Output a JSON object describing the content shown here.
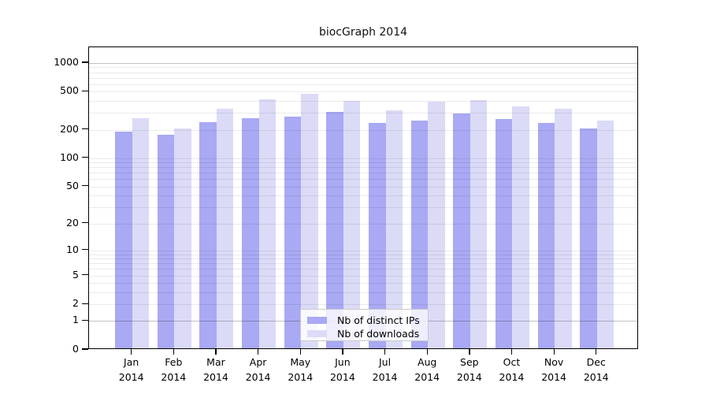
{
  "title": "biocGraph 2014",
  "chart_data": {
    "type": "bar",
    "title": "biocGraph 2014",
    "categories": [
      "Jan",
      "Feb",
      "Mar",
      "Apr",
      "May",
      "Jun",
      "Jul",
      "Aug",
      "Sep",
      "Oct",
      "Nov",
      "Dec"
    ],
    "category_year": "2014",
    "series": [
      {
        "name": "Nb of distinct IPs",
        "color": "#a9a9f4",
        "values": [
          185,
          171,
          233,
          255,
          262,
          295,
          228,
          241,
          286,
          250,
          228,
          197
        ]
      },
      {
        "name": "Nb of downloads",
        "color": "#dbdbf8",
        "values": [
          256,
          199,
          319,
          404,
          456,
          389,
          309,
          380,
          397,
          337,
          318,
          241
        ]
      }
    ],
    "y_axis": {
      "scale": "log1p",
      "tick_labels": [
        "1000",
        "500",
        "200",
        "100",
        "50",
        "20",
        "10",
        "5",
        "2",
        "1",
        "0"
      ],
      "tick_values": [
        1000,
        500,
        200,
        100,
        50,
        20,
        10,
        5,
        2,
        1,
        0
      ],
      "ylim": [
        0,
        1430
      ]
    },
    "gridline_values": [
      1,
      2,
      3,
      4,
      5,
      6,
      7,
      8,
      9,
      10,
      20,
      30,
      40,
      50,
      60,
      70,
      80,
      90,
      100,
      200,
      300,
      400,
      500,
      600,
      700,
      800,
      900,
      1000
    ],
    "gridline_major_values": [
      1,
      1000
    ],
    "colors": {
      "gridline_minor": "rgba(0,0,0,0.08)",
      "gridline_major": "rgba(0,0,0,0.24)",
      "axis": "#000000"
    },
    "legend": {
      "position": "inside-bottom-center",
      "entries": [
        "Nb of distinct IPs",
        "Nb of downloads"
      ]
    },
    "xlabel": "",
    "ylabel": ""
  }
}
